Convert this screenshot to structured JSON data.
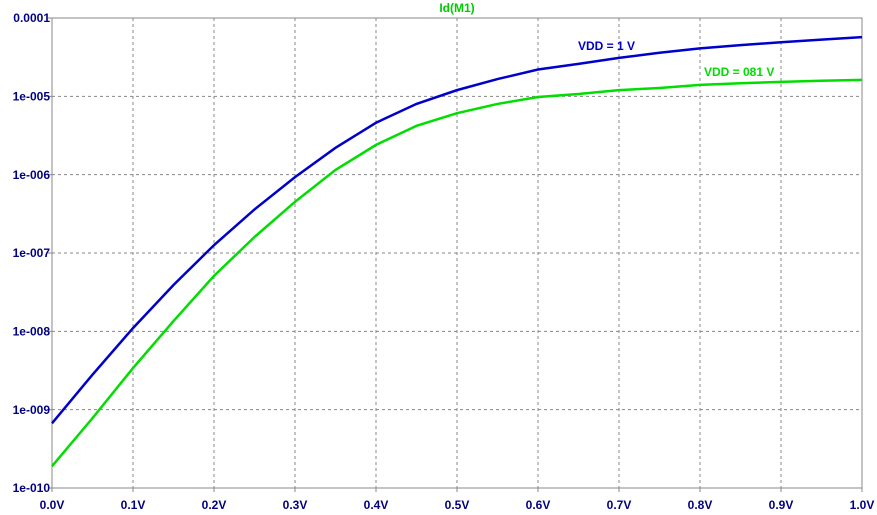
{
  "chart_data": {
    "type": "line",
    "title": "Id(M1)",
    "title_color": "#00cc00",
    "x": [
      0,
      0.05,
      0.1,
      0.15,
      0.2,
      0.25,
      0.3,
      0.35,
      0.4,
      0.45,
      0.5,
      0.55,
      0.6,
      0.65,
      0.7,
      0.75,
      0.8,
      0.85,
      0.9,
      0.95,
      1.0
    ],
    "series": [
      {
        "name": "VDD = 1 V",
        "color": "#0000cc",
        "values": [
          6.7e-10,
          2.8e-09,
          1.1e-08,
          3.9e-08,
          1.26e-07,
          3.6e-07,
          9.3e-07,
          2.2e-06,
          4.6e-06,
          8e-06,
          1.2e-05,
          1.66e-05,
          2.2e-05,
          2.6e-05,
          3.1e-05,
          3.6e-05,
          4.1e-05,
          4.5e-05,
          4.9e-05,
          5.3e-05,
          5.7e-05
        ]
      },
      {
        "name": "VDD = 081 V",
        "color": "#00dd00",
        "values": [
          1.9e-10,
          7.8e-10,
          3.4e-09,
          1.35e-08,
          5.1e-08,
          1.6e-07,
          4.5e-07,
          1.15e-06,
          2.4e-06,
          4.2e-06,
          6.1e-06,
          8e-06,
          9.8e-06,
          1.07e-05,
          1.2e-05,
          1.28e-05,
          1.4e-05,
          1.47e-05,
          1.53e-05,
          1.58e-05,
          1.62e-05
        ]
      }
    ],
    "xlim": [
      0,
      1.0
    ],
    "xticks": [
      {
        "value": 0,
        "label": "0.0V"
      },
      {
        "value": 0.1,
        "label": "0.1V"
      },
      {
        "value": 0.2,
        "label": "0.2V"
      },
      {
        "value": 0.3,
        "label": "0.3V"
      },
      {
        "value": 0.4,
        "label": "0.4V"
      },
      {
        "value": 0.5,
        "label": "0.5V"
      },
      {
        "value": 0.6,
        "label": "0.6V"
      },
      {
        "value": 0.7,
        "label": "0.7V"
      },
      {
        "value": 0.8,
        "label": "0.8V"
      },
      {
        "value": 0.9,
        "label": "0.9V"
      },
      {
        "value": 1.0,
        "label": "1.0V"
      }
    ],
    "ylim": [
      1e-10,
      0.0001
    ],
    "ylog": true,
    "yticks": [
      {
        "value": 1e-10,
        "label": "1e-010"
      },
      {
        "value": 1e-09,
        "label": "1e-009"
      },
      {
        "value": 1e-08,
        "label": "1e-008"
      },
      {
        "value": 1e-07,
        "label": "1e-007"
      },
      {
        "value": 1e-06,
        "label": "1e-006"
      },
      {
        "value": 1e-05,
        "label": "1e-005"
      },
      0.0001
    ],
    "grid": true
  }
}
